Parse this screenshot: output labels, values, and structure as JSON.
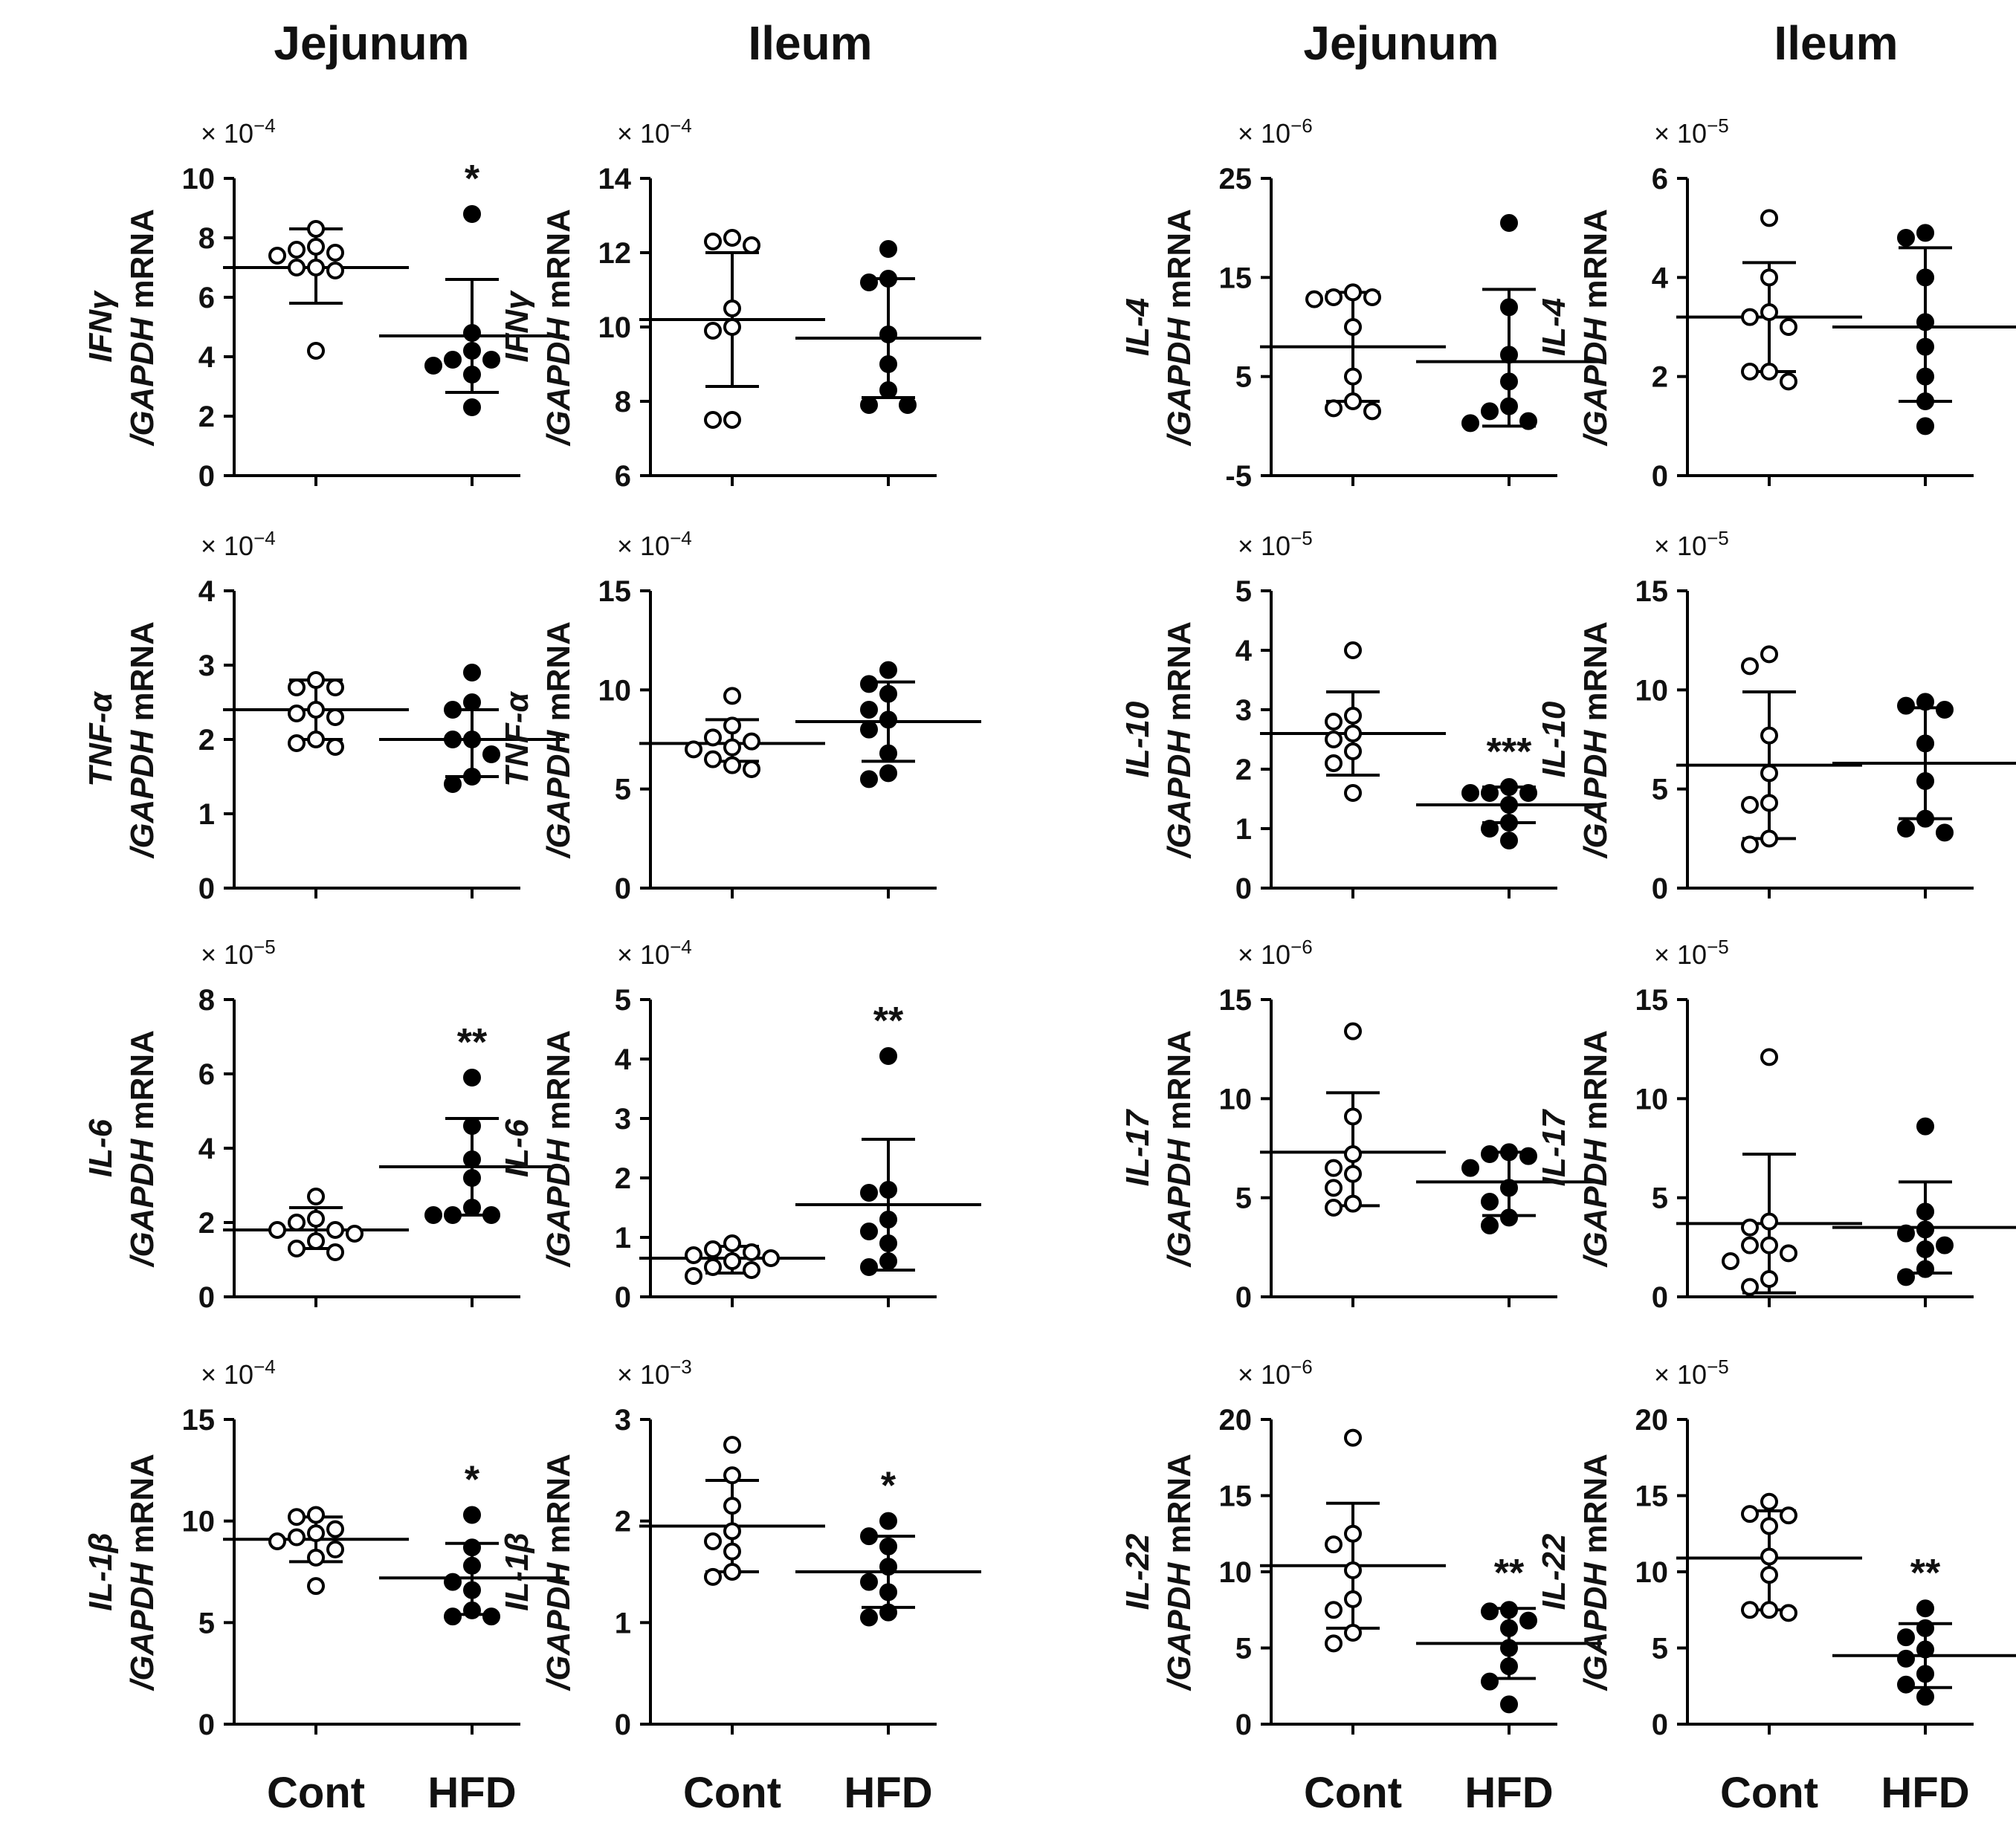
{
  "column_titles": [
    "Jejunum",
    "Ileum",
    "Jejunum",
    "Ileum"
  ],
  "categories": [
    "Cont",
    "HFD"
  ],
  "label_suffix": "/GAPDH mRNA",
  "chart_data": [
    {
      "type": "scatter",
      "gene": "IFNγ",
      "tissue": "Jejunum",
      "mult_base": "× 10",
      "mult_exp": "−4",
      "ylim": [
        0,
        10
      ],
      "yticks": [
        0,
        2,
        4,
        6,
        8,
        10
      ],
      "sig": "*",
      "cont": {
        "mean": 7.0,
        "sd_low": 5.8,
        "sd_high": 8.3,
        "points": [
          7.7,
          7.4,
          7.6,
          7.5,
          7.0,
          7.0,
          6.9,
          4.2,
          8.3
        ]
      },
      "hfd": {
        "mean": 4.7,
        "sd_low": 2.8,
        "sd_high": 6.6,
        "points": [
          8.8,
          4.8,
          4.2,
          3.9,
          3.7,
          3.4,
          3.9,
          2.3
        ]
      }
    },
    {
      "type": "scatter",
      "gene": "IFNγ",
      "tissue": "Ileum",
      "mult_base": "× 10",
      "mult_exp": "−4",
      "ylim": [
        6,
        14
      ],
      "yticks": [
        6,
        8,
        10,
        12,
        14
      ],
      "sig": "",
      "cont": {
        "mean": 10.2,
        "sd_low": 8.4,
        "sd_high": 12.0,
        "points": [
          12.4,
          12.3,
          12.2,
          10.5,
          9.9,
          10.0,
          7.5,
          7.5
        ]
      },
      "hfd": {
        "mean": 9.7,
        "sd_low": 8.1,
        "sd_high": 11.3,
        "points": [
          12.1,
          11.3,
          11.2,
          9.8,
          9.0,
          8.3,
          7.9,
          7.9
        ]
      }
    },
    {
      "type": "scatter",
      "gene": "IL-4",
      "tissue": "Jejunum",
      "mult_base": "× 10",
      "mult_exp": "−6",
      "ylim": [
        -5,
        25
      ],
      "yticks": [
        -5,
        5,
        15,
        25
      ],
      "sig": "",
      "cont": {
        "mean": 8.0,
        "sd_low": 2.5,
        "sd_high": 13.5,
        "points": [
          13.5,
          13.0,
          13.0,
          12.8,
          10.0,
          5.0,
          2.5,
          1.5,
          1.8
        ]
      },
      "hfd": {
        "mean": 6.5,
        "sd_low": 0.0,
        "sd_high": 13.8,
        "points": [
          20.5,
          12.0,
          7.2,
          4.5,
          2.0,
          1.5,
          0.5,
          0.3
        ]
      }
    },
    {
      "type": "scatter",
      "gene": "IL-4",
      "tissue": "Ileum",
      "mult_base": "× 10",
      "mult_exp": "−5",
      "ylim": [
        0,
        6
      ],
      "yticks": [
        0,
        2,
        4,
        6
      ],
      "sig": "",
      "cont": {
        "mean": 3.2,
        "sd_low": 2.1,
        "sd_high": 4.3,
        "points": [
          5.2,
          4.0,
          3.3,
          3.2,
          3.0,
          2.1,
          2.1,
          1.9
        ]
      },
      "hfd": {
        "mean": 3.0,
        "sd_low": 1.5,
        "sd_high": 4.6,
        "points": [
          4.9,
          4.8,
          4.0,
          3.1,
          2.6,
          2.0,
          1.5,
          1.0
        ]
      }
    },
    {
      "type": "scatter",
      "gene": "TNF-α",
      "tissue": "Jejunum",
      "mult_base": "× 10",
      "mult_exp": "−4",
      "ylim": [
        0,
        4
      ],
      "yticks": [
        0,
        1,
        2,
        3,
        4
      ],
      "sig": "",
      "cont": {
        "mean": 2.4,
        "sd_low": 2.0,
        "sd_high": 2.8,
        "points": [
          2.8,
          2.7,
          2.7,
          2.4,
          2.35,
          2.3,
          2.0,
          1.95,
          1.9
        ]
      },
      "hfd": {
        "mean": 2.0,
        "sd_low": 1.5,
        "sd_high": 2.4,
        "points": [
          2.9,
          2.5,
          2.4,
          2.0,
          2.0,
          1.8,
          1.5,
          1.4
        ]
      }
    },
    {
      "type": "scatter",
      "gene": "TNF-α",
      "tissue": "Ileum",
      "mult_base": "× 10",
      "mult_exp": "−4",
      "ylim": [
        0,
        15
      ],
      "yticks": [
        0,
        5,
        10,
        15
      ],
      "sig": "",
      "cont": {
        "mean": 7.3,
        "sd_low": 6.4,
        "sd_high": 8.5,
        "points": [
          9.7,
          8.2,
          7.6,
          7.4,
          7.1,
          7.0,
          6.5,
          6.2,
          6.0
        ]
      },
      "hfd": {
        "mean": 8.4,
        "sd_low": 6.4,
        "sd_high": 10.4,
        "points": [
          11.0,
          10.3,
          9.8,
          9.0,
          8.5,
          8.0,
          6.8,
          5.8,
          5.5
        ]
      }
    },
    {
      "type": "scatter",
      "gene": "IL-10",
      "tissue": "Jejunum",
      "mult_base": "× 10",
      "mult_exp": "−5",
      "ylim": [
        0,
        5
      ],
      "yticks": [
        0,
        1,
        2,
        3,
        4,
        5
      ],
      "sig": "***",
      "cont": {
        "mean": 2.6,
        "sd_low": 1.9,
        "sd_high": 3.3,
        "points": [
          4.0,
          2.9,
          2.8,
          2.6,
          2.5,
          2.3,
          2.1,
          1.6
        ]
      },
      "hfd": {
        "mean": 1.4,
        "sd_low": 1.1,
        "sd_high": 1.7,
        "points": [
          1.7,
          1.6,
          1.6,
          1.6,
          1.4,
          1.1,
          1.0,
          0.8
        ]
      }
    },
    {
      "type": "scatter",
      "gene": "IL-10",
      "tissue": "Ileum",
      "mult_base": "× 10",
      "mult_exp": "−5",
      "ylim": [
        0,
        15
      ],
      "yticks": [
        0,
        5,
        10,
        15
      ],
      "sig": "",
      "cont": {
        "mean": 6.2,
        "sd_low": 2.5,
        "sd_high": 9.9,
        "points": [
          11.8,
          11.2,
          7.7,
          5.8,
          4.3,
          4.2,
          2.5,
          2.2
        ]
      },
      "hfd": {
        "mean": 6.3,
        "sd_low": 3.5,
        "sd_high": 9.1,
        "points": [
          9.4,
          9.2,
          9.0,
          7.3,
          5.4,
          3.5,
          3.0,
          2.8
        ]
      }
    },
    {
      "type": "scatter",
      "gene": "IL-6",
      "tissue": "Jejunum",
      "mult_base": "× 10",
      "mult_exp": "−5",
      "ylim": [
        0,
        8
      ],
      "yticks": [
        0,
        2,
        4,
        6,
        8
      ],
      "sig": "**",
      "cont": {
        "mean": 1.8,
        "sd_low": 1.3,
        "sd_high": 2.4,
        "points": [
          2.7,
          2.1,
          2.0,
          1.8,
          1.8,
          1.7,
          1.5,
          1.3,
          1.2
        ]
      },
      "hfd": {
        "mean": 3.5,
        "sd_low": 2.2,
        "sd_high": 4.8,
        "points": [
          5.9,
          4.6,
          3.7,
          3.2,
          2.4,
          2.2,
          2.2,
          2.2
        ]
      }
    },
    {
      "type": "scatter",
      "gene": "IL-6",
      "tissue": "Ileum",
      "mult_base": "× 10",
      "mult_exp": "−4",
      "ylim": [
        0,
        5
      ],
      "yticks": [
        0,
        1,
        2,
        3,
        4,
        5
      ],
      "sig": "**",
      "cont": {
        "mean": 0.65,
        "sd_low": 0.4,
        "sd_high": 0.85,
        "points": [
          0.9,
          0.8,
          0.75,
          0.7,
          0.65,
          0.6,
          0.5,
          0.45,
          0.35
        ]
      },
      "hfd": {
        "mean": 1.55,
        "sd_low": 0.45,
        "sd_high": 2.65,
        "points": [
          4.05,
          1.8,
          1.75,
          1.3,
          1.1,
          0.9,
          0.6,
          0.5
        ]
      }
    },
    {
      "type": "scatter",
      "gene": "IL-17",
      "tissue": "Jejunum",
      "mult_base": "× 10",
      "mult_exp": "−6",
      "ylim": [
        0,
        15
      ],
      "yticks": [
        0,
        5,
        10,
        15
      ],
      "sig": "",
      "cont": {
        "mean": 7.3,
        "sd_low": 4.6,
        "sd_high": 10.3,
        "points": [
          13.4,
          9.1,
          7.2,
          6.5,
          6.2,
          5.5,
          4.7,
          4.5
        ]
      },
      "hfd": {
        "mean": 5.8,
        "sd_low": 4.1,
        "sd_high": 7.3,
        "points": [
          7.3,
          7.2,
          7.1,
          6.5,
          5.5,
          4.8,
          4.0,
          3.6
        ]
      }
    },
    {
      "type": "scatter",
      "gene": "IL-17",
      "tissue": "Ileum",
      "mult_base": "× 10",
      "mult_exp": "−5",
      "ylim": [
        0,
        15
      ],
      "yticks": [
        0,
        5,
        10,
        15
      ],
      "sig": "",
      "cont": {
        "mean": 3.7,
        "sd_low": 0.2,
        "sd_high": 7.2,
        "points": [
          12.1,
          3.8,
          3.5,
          2.6,
          2.6,
          2.2,
          1.8,
          0.9,
          0.5
        ]
      },
      "hfd": {
        "mean": 3.5,
        "sd_low": 1.2,
        "sd_high": 5.8,
        "points": [
          8.6,
          4.3,
          3.4,
          3.2,
          2.6,
          2.4,
          1.4,
          1.0
        ]
      }
    },
    {
      "type": "scatter",
      "gene": "IL-1β",
      "tissue": "Jejunum",
      "mult_base": "× 10",
      "mult_exp": "−4",
      "ylim": [
        0,
        15
      ],
      "yticks": [
        0,
        5,
        10,
        15
      ],
      "sig": "*",
      "cont": {
        "mean": 9.1,
        "sd_low": 8.0,
        "sd_high": 10.2,
        "points": [
          10.3,
          10.2,
          9.6,
          9.4,
          9.2,
          9.0,
          8.6,
          8.2,
          6.8
        ]
      },
      "hfd": {
        "mean": 7.2,
        "sd_low": 5.4,
        "sd_high": 8.9,
        "points": [
          10.3,
          8.7,
          7.8,
          7.0,
          6.6,
          5.6,
          5.3,
          5.3
        ]
      }
    },
    {
      "type": "scatter",
      "gene": "IL-1β",
      "tissue": "Ileum",
      "mult_base": "× 10",
      "mult_exp": "−3",
      "ylim": [
        0,
        3
      ],
      "yticks": [
        0,
        1,
        2,
        3
      ],
      "sig": "*",
      "cont": {
        "mean": 1.95,
        "sd_low": 1.5,
        "sd_high": 2.4,
        "points": [
          2.75,
          2.45,
          2.15,
          1.9,
          1.8,
          1.7,
          1.5,
          1.45
        ]
      },
      "hfd": {
        "mean": 1.5,
        "sd_low": 1.15,
        "sd_high": 1.85,
        "points": [
          2.0,
          1.85,
          1.75,
          1.55,
          1.4,
          1.3,
          1.1,
          1.05
        ]
      }
    },
    {
      "type": "scatter",
      "gene": "IL-22",
      "tissue": "Jejunum",
      "mult_base": "× 10",
      "mult_exp": "−6",
      "ylim": [
        0,
        20
      ],
      "yticks": [
        0,
        5,
        10,
        15,
        20
      ],
      "sig": "**",
      "cont": {
        "mean": 10.4,
        "sd_low": 6.3,
        "sd_high": 14.5,
        "points": [
          18.8,
          12.5,
          11.8,
          10.1,
          8.2,
          7.5,
          6.0,
          5.3
        ]
      },
      "hfd": {
        "mean": 5.3,
        "sd_low": 3.0,
        "sd_high": 7.6,
        "points": [
          7.5,
          7.4,
          6.8,
          6.3,
          5.0,
          3.8,
          2.8,
          1.3
        ]
      }
    },
    {
      "type": "scatter",
      "gene": "IL-22",
      "tissue": "Ileum",
      "mult_base": "× 10",
      "mult_exp": "−5",
      "ylim": [
        0,
        20
      ],
      "yticks": [
        0,
        5,
        10,
        15,
        20
      ],
      "sig": "**",
      "cont": {
        "mean": 10.9,
        "sd_low": 7.5,
        "sd_high": 14.0,
        "points": [
          14.6,
          13.8,
          13.7,
          13.0,
          11.0,
          9.8,
          7.5,
          7.5,
          7.3
        ]
      },
      "hfd": {
        "mean": 4.5,
        "sd_low": 2.4,
        "sd_high": 6.6,
        "points": [
          7.6,
          6.3,
          5.7,
          4.9,
          4.3,
          3.3,
          2.6,
          1.8
        ]
      }
    }
  ]
}
